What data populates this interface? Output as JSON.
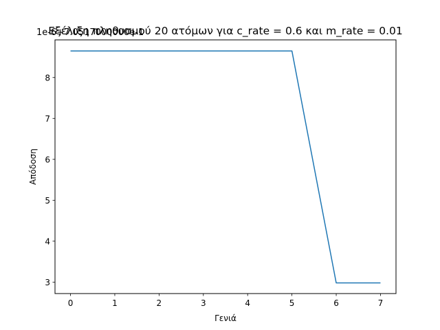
{
  "chart_data": {
    "type": "line",
    "title": "Εξέλιξη πληθυσμού 20 ατόμων για c_rate = 0.6 και m_rate = 0.01",
    "offset_label": "1e-6+7.0517000000e-1",
    "xlabel": "Γενιά",
    "ylabel": "Απόδοση",
    "xlim": [
      -0.35,
      7.35
    ],
    "ylim": [
      2.72,
      8.92
    ],
    "x_ticks": [
      0,
      1,
      2,
      3,
      4,
      5,
      6,
      7
    ],
    "y_ticks": [
      3,
      4,
      5,
      6,
      7,
      8
    ],
    "grid": false,
    "series": [
      {
        "color": "#1f77b4",
        "x": [
          0,
          1,
          2,
          3,
          4,
          5,
          6,
          7
        ],
        "y": [
          8.65,
          8.65,
          8.65,
          8.65,
          8.65,
          8.65,
          2.98,
          2.98
        ]
      }
    ]
  }
}
